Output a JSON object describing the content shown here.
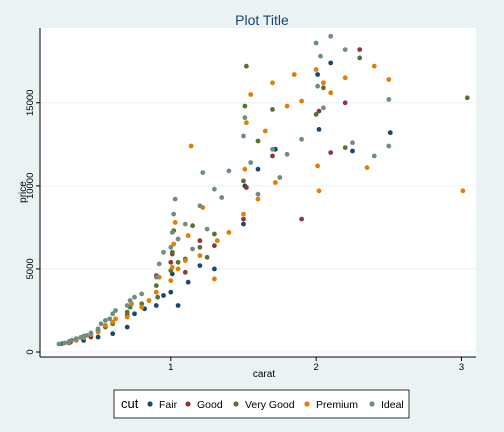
{
  "chart_data": {
    "type": "scatter",
    "title": "Plot Title",
    "xlabel": "carat",
    "ylabel": "price",
    "xlim": [
      0.1,
      3.1
    ],
    "ylim": [
      -300,
      19500
    ],
    "xticks": [
      1,
      2,
      3
    ],
    "yticks": [
      0,
      5000,
      10000,
      15000
    ],
    "grid": true,
    "legend": {
      "title": "cut",
      "position": "bottom"
    },
    "colors": {
      "Fair": "#1a476f",
      "Good": "#90353b",
      "Very Good": "#55752f",
      "Premium": "#e37e00",
      "Ideal": "#6e8e84"
    },
    "series": [
      {
        "name": "Fair",
        "points": [
          [
            0.31,
            600
          ],
          [
            0.4,
            700
          ],
          [
            0.5,
            900
          ],
          [
            0.6,
            1100
          ],
          [
            0.7,
            1500
          ],
          [
            0.75,
            2300
          ],
          [
            0.82,
            2600
          ],
          [
            0.9,
            2800
          ],
          [
            0.95,
            3400
          ],
          [
            1.0,
            3600
          ],
          [
            1.01,
            4700
          ],
          [
            1.05,
            2800
          ],
          [
            1.12,
            4200
          ],
          [
            1.2,
            5200
          ],
          [
            1.3,
            5000
          ],
          [
            1.5,
            7700
          ],
          [
            1.51,
            10000
          ],
          [
            1.6,
            11000
          ],
          [
            1.72,
            12200
          ],
          [
            2.01,
            16700
          ],
          [
            2.02,
            13400
          ],
          [
            2.1,
            17400
          ],
          [
            2.25,
            12100
          ],
          [
            2.51,
            13200
          ]
        ]
      },
      {
        "name": "Good",
        "points": [
          [
            0.3,
            550
          ],
          [
            0.45,
            900
          ],
          [
            0.7,
            2200
          ],
          [
            0.9,
            4600
          ],
          [
            1.0,
            5400
          ],
          [
            1.01,
            5900
          ],
          [
            1.1,
            4800
          ],
          [
            1.2,
            6700
          ],
          [
            1.3,
            6400
          ],
          [
            1.5,
            8000
          ],
          [
            1.52,
            9900
          ],
          [
            1.7,
            11800
          ],
          [
            1.9,
            8000
          ],
          [
            2.02,
            14500
          ],
          [
            2.1,
            12000
          ],
          [
            2.2,
            15000
          ],
          [
            2.3,
            18200
          ]
        ]
      },
      {
        "name": "Very Good",
        "points": [
          [
            0.25,
            500
          ],
          [
            0.3,
            620
          ],
          [
            0.35,
            760
          ],
          [
            0.4,
            900
          ],
          [
            0.5,
            1300
          ],
          [
            0.55,
            1500
          ],
          [
            0.6,
            1700
          ],
          [
            0.7,
            2400
          ],
          [
            0.72,
            2700
          ],
          [
            0.8,
            2900
          ],
          [
            0.9,
            4000
          ],
          [
            0.91,
            3300
          ],
          [
            1.0,
            4900
          ],
          [
            1.01,
            6000
          ],
          [
            1.02,
            7300
          ],
          [
            1.05,
            5400
          ],
          [
            1.1,
            5600
          ],
          [
            1.15,
            7600
          ],
          [
            1.2,
            6300
          ],
          [
            1.25,
            5700
          ],
          [
            1.3,
            7100
          ],
          [
            1.5,
            10300
          ],
          [
            1.51,
            14800
          ],
          [
            1.52,
            17200
          ],
          [
            1.6,
            12700
          ],
          [
            1.7,
            14600
          ],
          [
            2.0,
            14300
          ],
          [
            2.05,
            15900
          ],
          [
            2.2,
            12300
          ],
          [
            2.3,
            17700
          ],
          [
            3.04,
            15300
          ]
        ]
      },
      {
        "name": "Premium",
        "points": [
          [
            0.3,
            580
          ],
          [
            0.35,
            700
          ],
          [
            0.4,
            860
          ],
          [
            0.45,
            1050
          ],
          [
            0.5,
            1200
          ],
          [
            0.55,
            1600
          ],
          [
            0.6,
            1800
          ],
          [
            0.62,
            2000
          ],
          [
            0.7,
            2100
          ],
          [
            0.73,
            2900
          ],
          [
            0.8,
            2700
          ],
          [
            0.85,
            3100
          ],
          [
            0.9,
            3600
          ],
          [
            0.92,
            4500
          ],
          [
            1.0,
            4300
          ],
          [
            1.01,
            5100
          ],
          [
            1.02,
            6500
          ],
          [
            1.03,
            7800
          ],
          [
            1.05,
            5000
          ],
          [
            1.1,
            5500
          ],
          [
            1.12,
            7000
          ],
          [
            1.14,
            12400
          ],
          [
            1.2,
            5800
          ],
          [
            1.22,
            8700
          ],
          [
            1.3,
            4400
          ],
          [
            1.32,
            6700
          ],
          [
            1.4,
            7200
          ],
          [
            1.5,
            8300
          ],
          [
            1.51,
            11000
          ],
          [
            1.52,
            13800
          ],
          [
            1.55,
            15500
          ],
          [
            1.6,
            9200
          ],
          [
            1.65,
            13300
          ],
          [
            1.7,
            16200
          ],
          [
            1.72,
            10200
          ],
          [
            1.8,
            14800
          ],
          [
            1.85,
            16700
          ],
          [
            1.9,
            15100
          ],
          [
            2.0,
            17000
          ],
          [
            2.01,
            11200
          ],
          [
            2.02,
            9700
          ],
          [
            2.05,
            16200
          ],
          [
            2.1,
            15600
          ],
          [
            2.2,
            16500
          ],
          [
            2.35,
            11100
          ],
          [
            2.4,
            17200
          ],
          [
            2.5,
            16400
          ],
          [
            3.01,
            9700
          ]
        ]
      },
      {
        "name": "Ideal",
        "points": [
          [
            0.23,
            480
          ],
          [
            0.27,
            540
          ],
          [
            0.3,
            640
          ],
          [
            0.32,
            720
          ],
          [
            0.35,
            800
          ],
          [
            0.38,
            880
          ],
          [
            0.4,
            950
          ],
          [
            0.42,
            1000
          ],
          [
            0.45,
            1150
          ],
          [
            0.5,
            1400
          ],
          [
            0.52,
            1700
          ],
          [
            0.55,
            1900
          ],
          [
            0.58,
            2000
          ],
          [
            0.6,
            2300
          ],
          [
            0.62,
            2500
          ],
          [
            0.7,
            2800
          ],
          [
            0.72,
            3100
          ],
          [
            0.75,
            3300
          ],
          [
            0.8,
            3500
          ],
          [
            0.9,
            4500
          ],
          [
            0.92,
            5300
          ],
          [
            0.95,
            6000
          ],
          [
            1.0,
            6300
          ],
          [
            1.01,
            7200
          ],
          [
            1.02,
            8300
          ],
          [
            1.03,
            9200
          ],
          [
            1.05,
            6800
          ],
          [
            1.1,
            7700
          ],
          [
            1.15,
            6200
          ],
          [
            1.2,
            8800
          ],
          [
            1.22,
            10800
          ],
          [
            1.25,
            7400
          ],
          [
            1.3,
            9800
          ],
          [
            1.35,
            9300
          ],
          [
            1.4,
            10900
          ],
          [
            1.5,
            13000
          ],
          [
            1.51,
            14100
          ],
          [
            1.55,
            11400
          ],
          [
            1.6,
            9500
          ],
          [
            1.7,
            12200
          ],
          [
            1.75,
            10500
          ],
          [
            1.8,
            11900
          ],
          [
            1.9,
            12800
          ],
          [
            2.0,
            18600
          ],
          [
            2.01,
            16000
          ],
          [
            2.03,
            17800
          ],
          [
            2.05,
            14700
          ],
          [
            2.1,
            19000
          ],
          [
            2.2,
            18200
          ],
          [
            2.25,
            12600
          ],
          [
            2.4,
            11800
          ],
          [
            2.5,
            15200
          ],
          [
            2.5,
            12400
          ]
        ]
      }
    ]
  }
}
